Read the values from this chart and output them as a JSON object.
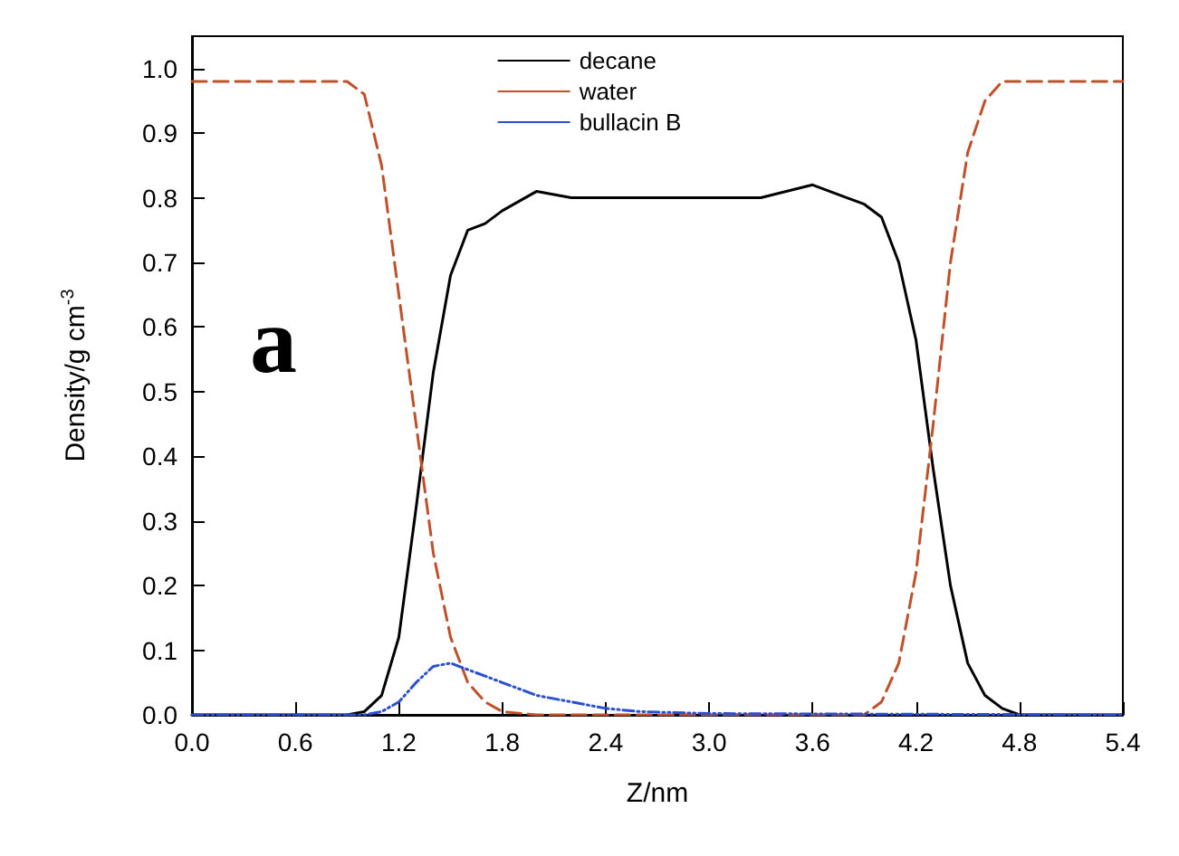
{
  "chart_data": {
    "type": "line",
    "xlabel": "Z/nm",
    "ylabel": "Density/g cm$^{-3}$",
    "annotations": [
      "a"
    ],
    "legend": "top",
    "grid": false,
    "marker": "none",
    "xlim": [
      0,
      5.4
    ],
    "xticks": [
      {
        "value": 0,
        "label": "0.0"
      },
      {
        "value": 0.6,
        "label": "0.6"
      },
      {
        "value": 1.2,
        "label": "1.2"
      },
      {
        "value": 1.8,
        "label": "1.8"
      },
      {
        "value": 2.4,
        "label": "2.4"
      },
      {
        "value": 3.0,
        "label": "3.0"
      },
      {
        "value": 3.6,
        "label": "3.6"
      },
      {
        "value": 4.2,
        "label": "4.2"
      },
      {
        "value": 4.8,
        "label": "4.8"
      },
      {
        "value": 5.4,
        "label": "5.4"
      }
    ],
    "ylim": [
      0,
      1.05
    ],
    "yticks": [
      {
        "value": 0,
        "label": "0.0"
      },
      {
        "value": 0.1,
        "label": "0.1"
      },
      {
        "value": 0.2,
        "label": "0.2"
      },
      {
        "value": 0.3,
        "label": "0.3"
      },
      {
        "value": 0.4,
        "label": "0.4"
      },
      {
        "value": 0.5,
        "label": "0.5"
      },
      {
        "value": 0.6,
        "label": "0.6"
      },
      {
        "value": 0.7,
        "label": "0.7"
      },
      {
        "value": 0.8,
        "label": "0.8"
      },
      {
        "value": 0.9,
        "label": "0.9"
      },
      {
        "value": 1.0,
        "label": "1.0"
      }
    ],
    "series": [
      {
        "name": "decane",
        "color": "#000000",
        "line_style": "solid",
        "x": [
          0,
          0.9,
          1.0,
          1.1,
          1.2,
          1.3,
          1.4,
          1.5,
          1.6,
          1.7,
          1.8,
          2.0,
          2.2,
          2.4,
          2.7,
          3.0,
          3.3,
          3.6,
          3.8,
          3.9,
          4.0,
          4.1,
          4.2,
          4.3,
          4.4,
          4.5,
          4.6,
          4.7,
          4.8,
          5.4
        ],
        "values": [
          0,
          0,
          0.005,
          0.03,
          0.12,
          0.32,
          0.53,
          0.68,
          0.75,
          0.76,
          0.78,
          0.81,
          0.8,
          0.8,
          0.8,
          0.8,
          0.8,
          0.82,
          0.8,
          0.79,
          0.77,
          0.7,
          0.58,
          0.38,
          0.2,
          0.08,
          0.03,
          0.01,
          0,
          0
        ]
      },
      {
        "name": "water",
        "color": "#c0502a",
        "line_style": "dashed",
        "x": [
          0,
          0.3,
          0.6,
          0.9,
          1.0,
          1.1,
          1.2,
          1.3,
          1.4,
          1.5,
          1.6,
          1.7,
          1.8,
          2.0,
          3.9,
          4.0,
          4.1,
          4.2,
          4.3,
          4.4,
          4.5,
          4.6,
          4.7,
          5.0,
          5.4
        ],
        "values": [
          0.98,
          0.98,
          0.98,
          0.98,
          0.96,
          0.85,
          0.65,
          0.45,
          0.25,
          0.12,
          0.05,
          0.02,
          0.005,
          0,
          0,
          0.02,
          0.08,
          0.22,
          0.45,
          0.7,
          0.87,
          0.95,
          0.98,
          0.98,
          0.98
        ]
      },
      {
        "name": "bullacin B",
        "color": "#2a4fd0",
        "line_style": "dotted",
        "x": [
          0,
          1.0,
          1.1,
          1.2,
          1.3,
          1.4,
          1.5,
          1.6,
          1.8,
          2.0,
          2.2,
          2.4,
          2.6,
          3.0,
          5.4
        ],
        "values": [
          0,
          0,
          0.005,
          0.02,
          0.05,
          0.075,
          0.08,
          0.07,
          0.05,
          0.03,
          0.02,
          0.01,
          0.005,
          0.002,
          0
        ]
      }
    ]
  }
}
